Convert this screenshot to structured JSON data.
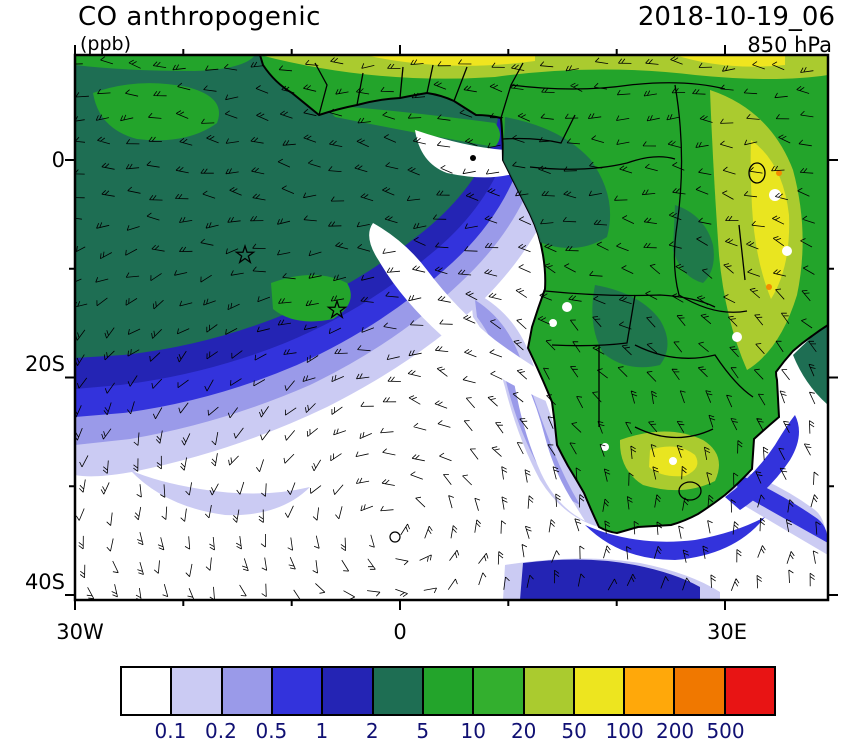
{
  "header": {
    "title": "CO anthropogenic",
    "units": "(ppb)",
    "datetime": "2018-10-19_06",
    "level": "850 hPa"
  },
  "axes": {
    "y_tick_labels": [
      "0",
      "20S",
      "40S"
    ],
    "x_tick_labels": [
      "30W",
      "0",
      "30E"
    ]
  },
  "colorbar": {
    "label_color": "#101073",
    "colors": [
      "#FFFFFF",
      "#CBCBF3",
      "#9A9AE9",
      "#3333DC",
      "#2424B4",
      "#1E6E53",
      "#23A42B",
      "#33AF2E",
      "#AACB2F",
      "#EDE51F",
      "#FFA80A",
      "#F07800",
      "#E81414"
    ],
    "labels": [
      "0.1",
      "0.2",
      "0.5",
      "1",
      "2",
      "5",
      "10",
      "20",
      "50",
      "100",
      "200",
      "500"
    ]
  },
  "chart_data": {
    "type": "heatmap",
    "title": "CO anthropogenic",
    "units": "ppb",
    "valid_time": "2018-10-19_06",
    "pressure_level": "850 hPa",
    "region": "Africa and South Atlantic",
    "x_tick_labels": [
      "30W",
      "0",
      "30E"
    ],
    "y_tick_labels": [
      "0",
      "20S",
      "40S"
    ],
    "lon_range_approx_deg": [
      -30,
      40
    ],
    "lat_range_approx_deg": [
      -41,
      10
    ],
    "contour_levels_ppb": [
      0.1,
      0.2,
      0.5,
      1,
      2,
      5,
      10,
      20,
      50,
      100,
      200,
      500
    ],
    "palette_hex": [
      "#FFFFFF",
      "#CBCBF3",
      "#9A9AE9",
      "#3333DC",
      "#2424B4",
      "#1E6E53",
      "#23A42B",
      "#33AF2E",
      "#AACB2F",
      "#EDE51F",
      "#FFA80A",
      "#F07800",
      "#E81414"
    ],
    "overlays": [
      "wind barbs",
      "coastlines",
      "country borders",
      "two star markers over SE Atlantic plume",
      "circle marker near South Atlantic anticyclone center"
    ],
    "pattern_summary": [
      "CO plume of 2-5 ppb (locally 5-10 ppb) over Gulf of Guinea and tropical SE Atlantic",
      "Concentric 0.1-2 ppb rings surrounding the offshore plume",
      "Below 0.1 ppb (white) over the subtropical South Atlantic high",
      "10-50 ppb over central and southern Africa, 50-100 ppb patches over East Africa and Guinea coast",
      "Isolated 100-500 ppb spots over East African highlands"
    ]
  }
}
